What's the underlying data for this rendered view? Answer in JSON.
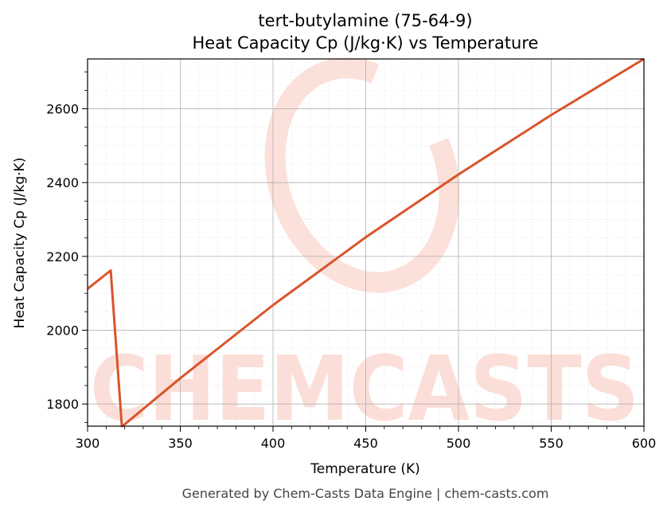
{
  "chart_data": {
    "type": "line",
    "title": "tert-butylamine (75-64-9)",
    "subtitle": "Heat Capacity Cp (J/kg·K) vs Temperature",
    "xlabel": "Temperature (K)",
    "ylabel": "Heat Capacity Cp (J/kg·K)",
    "xlim": [
      300,
      600
    ],
    "ylim": [
      1740,
      2735
    ],
    "xticks": [
      300,
      350,
      400,
      450,
      500,
      550,
      600
    ],
    "yticks": [
      1800,
      2000,
      2200,
      2400,
      2600
    ],
    "grid": true,
    "legend": "none",
    "series": [
      {
        "color": "#d9542b",
        "x": [
          300,
          312.5,
          318.5,
          320,
          350,
          400,
          450,
          500,
          550,
          600
        ],
        "y": [
          2112,
          2162,
          1740,
          1745,
          1870,
          2068,
          2252,
          2422,
          2583,
          2735
        ]
      }
    ]
  },
  "watermark": {
    "text": "CHEMCASTS",
    "color": "#fbd3cb"
  },
  "footer": "Generated by Chem-Casts Data Engine | chem-casts.com"
}
